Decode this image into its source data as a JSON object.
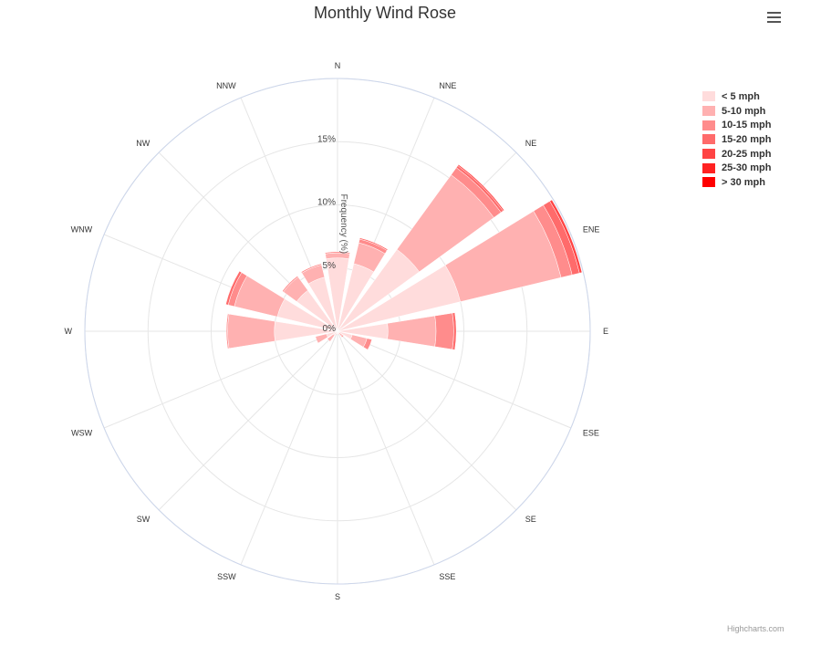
{
  "chart_data": {
    "type": "bar",
    "polar": true,
    "stacked": true,
    "title": "Monthly Wind Rose",
    "ylabel": "Frequency (%)",
    "ylim": [
      0,
      20
    ],
    "yticks": [
      0,
      5,
      10,
      15
    ],
    "ytick_labels": [
      "0%",
      "5%",
      "10%",
      "15%"
    ],
    "grid": true,
    "legend_position": "top-right",
    "categories": [
      "N",
      "NNE",
      "NE",
      "ENE",
      "E",
      "ESE",
      "SE",
      "SSE",
      "S",
      "SSW",
      "SW",
      "WSW",
      "W",
      "WNW",
      "NW",
      "NNW"
    ],
    "series": [
      {
        "name": "< 5 mph",
        "color": "#ffdcdc",
        "values": [
          5.8,
          5.5,
          8.0,
          10.0,
          4.0,
          1.2,
          0.2,
          0.2,
          0.0,
          0.2,
          0.4,
          0.9,
          5.0,
          4.9,
          4.0,
          4.4
        ]
      },
      {
        "name": "5-10 mph",
        "color": "#ffb1b1",
        "values": [
          0.4,
          1.7,
          7.3,
          8.2,
          3.8,
          1.2,
          0.3,
          0.1,
          0.2,
          0.1,
          0.6,
          0.9,
          3.7,
          3.5,
          1.3,
          1.0
        ]
      },
      {
        "name": "10-15 mph",
        "color": "#ff8c8c",
        "values": [
          0.1,
          0.3,
          0.7,
          0.9,
          1.4,
          0.4,
          0.1,
          0.0,
          0.0,
          0.0,
          0.0,
          0.0,
          0.1,
          0.5,
          0.1,
          0.1
        ]
      },
      {
        "name": "15-20 mph",
        "color": "#ff6b6b",
        "values": [
          0.0,
          0.1,
          0.2,
          0.6,
          0.2,
          0.0,
          0.0,
          0.0,
          0.0,
          0.0,
          0.0,
          0.0,
          0.0,
          0.2,
          0.0,
          0.0
        ]
      },
      {
        "name": "20-25 mph",
        "color": "#ff4444",
        "values": [
          0.0,
          0.0,
          0.1,
          0.2,
          0.0,
          0.0,
          0.0,
          0.0,
          0.0,
          0.0,
          0.0,
          0.0,
          0.0,
          0.0,
          0.0,
          0.0
        ]
      },
      {
        "name": "25-30 mph",
        "color": "#ff2222",
        "values": [
          0.0,
          0.0,
          0.0,
          0.0,
          0.0,
          0.0,
          0.0,
          0.0,
          0.0,
          0.0,
          0.0,
          0.0,
          0.0,
          0.0,
          0.0,
          0.0
        ]
      },
      {
        "name": "> 30 mph",
        "color": "#ff0000",
        "values": [
          0.0,
          0.0,
          0.0,
          0.0,
          0.0,
          0.0,
          0.0,
          0.0,
          0.0,
          0.0,
          0.0,
          0.0,
          0.0,
          0.0,
          0.0,
          0.0
        ]
      }
    ]
  },
  "credits": "Highcharts.com",
  "menu_icon": "hamburger-menu-icon"
}
